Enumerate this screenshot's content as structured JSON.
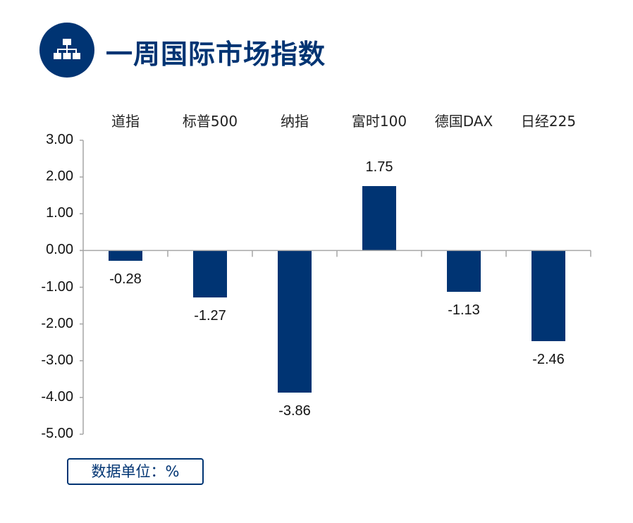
{
  "header": {
    "title": "一周国际市场指数",
    "icon": "sitemap-icon"
  },
  "unit_label": "数据单位：%",
  "colors": {
    "bar": "#003473",
    "title": "#003473",
    "axis": "#a6a6a6"
  },
  "chart_data": {
    "type": "bar",
    "title": "一周国际市场指数",
    "categories": [
      "道指",
      "标普500",
      "纳指",
      "富时100",
      "德国DAX",
      "日经225"
    ],
    "values": [
      -0.28,
      -1.27,
      -3.86,
      1.75,
      -1.13,
      -2.46
    ],
    "value_labels": [
      "-0.28",
      "-1.27",
      "-3.86",
      "1.75",
      "-1.13",
      "-2.46"
    ],
    "xlabel": "",
    "ylabel": "",
    "unit": "%",
    "ylim": [
      -5,
      3
    ],
    "yticks": [
      "3.00",
      "2.00",
      "1.00",
      "0.00",
      "-1.00",
      "-2.00",
      "-3.00",
      "-4.00",
      "-5.00"
    ],
    "category_labels_position": "top",
    "grid": false,
    "legend": false
  }
}
